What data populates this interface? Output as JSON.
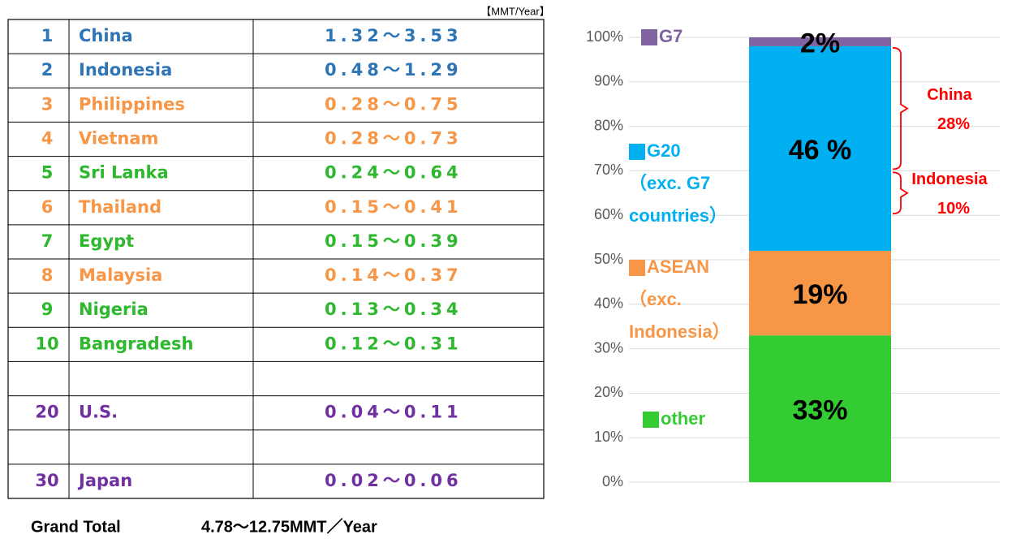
{
  "table": {
    "unit": "【MMT/Year】",
    "rows": [
      {
        "rank": 1,
        "country": "China",
        "range": "1.32～3.53",
        "color": "#2e75b6"
      },
      {
        "rank": 2,
        "country": "Indonesia",
        "range": "0.48～1.29",
        "color": "#2e75b6"
      },
      {
        "rank": 3,
        "country": "Philippines",
        "range": "0.28～0.75",
        "color": "#f79646"
      },
      {
        "rank": 4,
        "country": "Vietnam",
        "range": "0.28～0.73",
        "color": "#f79646"
      },
      {
        "rank": 5,
        "country": "Sri Lanka",
        "range": "0.24～0.64",
        "color": "#2db82d"
      },
      {
        "rank": 6,
        "country": "Thailand",
        "range": "0.15～0.41",
        "color": "#f79646"
      },
      {
        "rank": 7,
        "country": "Egypt",
        "range": "0.15～0.39",
        "color": "#2db82d"
      },
      {
        "rank": 8,
        "country": "Malaysia",
        "range": "0.14～0.37",
        "color": "#f79646"
      },
      {
        "rank": 9,
        "country": "Nigeria",
        "range": "0.13～0.34",
        "color": "#2db82d"
      },
      {
        "rank": 10,
        "country": "Bangradesh",
        "range": "0.12～0.31",
        "color": "#2db82d"
      },
      null,
      {
        "rank": 20,
        "country": "U.S.",
        "range": "0.04～0.11",
        "color": "#7030a0"
      },
      null,
      {
        "rank": 30,
        "country": "Japan",
        "range": "0.02～0.06",
        "color": "#7030a0"
      }
    ]
  },
  "footer": {
    "label": "Grand Total",
    "value": "4.78～12.75MMT／Year"
  },
  "chart_data": {
    "type": "stacked_bar",
    "categories": [
      null
    ],
    "series": [
      {
        "name": "other",
        "color": "#33cc33",
        "values": [
          33
        ],
        "value_labels": [
          "33%"
        ]
      },
      {
        "name": "ASEAN\n（exc.\nIndonesia）",
        "color": "#f79646",
        "values": [
          19
        ],
        "value_labels": [
          "19%"
        ]
      },
      {
        "name": "G20\n（exc. G7\ncountries）",
        "color": "#00b0f0",
        "values": [
          46
        ],
        "value_labels": [
          "46 %"
        ]
      },
      {
        "name": "G7",
        "color": "#8064a2",
        "values": [
          2
        ],
        "value_labels": [
          "2%"
        ]
      }
    ],
    "ylim": [
      0,
      100
    ],
    "yticks": [
      {
        "value": 0,
        "label": "0%"
      },
      {
        "value": 10,
        "label": "10%"
      },
      {
        "value": 20,
        "label": "20%"
      },
      {
        "value": 30,
        "label": "30%"
      },
      {
        "value": 40,
        "label": "40%"
      },
      {
        "value": 50,
        "label": "50%"
      },
      {
        "value": 60,
        "label": "60%"
      },
      {
        "value": 70,
        "label": "70%"
      },
      {
        "value": 80,
        "label": "80%"
      },
      {
        "value": 90,
        "label": "90%"
      },
      {
        "value": 100,
        "label": "100%"
      }
    ],
    "grid": true,
    "annotations": [
      {
        "label": "China",
        "value": 28,
        "value_label": "28%",
        "color": "#ff0000"
      },
      {
        "label": "Indonesia",
        "value": 10,
        "value_label": "10%",
        "color": "#ff0000"
      }
    ]
  }
}
